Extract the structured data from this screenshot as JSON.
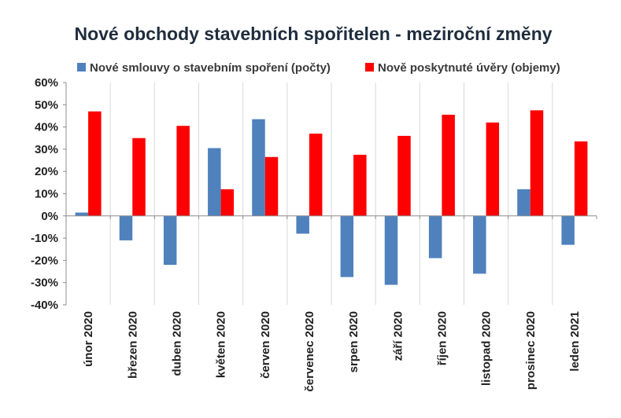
{
  "chart_data": {
    "type": "bar",
    "title": "Nové obchody stavebních spořitelen - meziroční změny",
    "xlabel": "",
    "ylabel": "",
    "categories": [
      "únor 2020",
      "březen 2020",
      "duben 2020",
      "květen 2020",
      "červen 2020",
      "červenec 2020",
      "srpen 2020",
      "září 2020",
      "říjen 2020",
      "listopad 2020",
      "prosinec 2020",
      "leden 2021"
    ],
    "series": [
      {
        "name": "Nové smlouvy o stavebním spoření (počty)",
        "color": "#4f81bd",
        "values": [
          1.5,
          -11,
          -22,
          30.5,
          43.5,
          -8,
          -27.5,
          -31,
          -19,
          -26,
          12,
          -13
        ]
      },
      {
        "name": "Nově poskytnuté úvěry (objemy)",
        "color": "#ff0000",
        "values": [
          47,
          35,
          40.5,
          12,
          26.5,
          37,
          27.5,
          36,
          45.5,
          42,
          47.5,
          33.5
        ]
      }
    ],
    "ylim": [
      -40,
      60
    ],
    "yticks": [
      -40,
      -30,
      -20,
      -10,
      0,
      10,
      20,
      30,
      40,
      50,
      60
    ],
    "ytick_labels": [
      "-40%",
      "-30%",
      "-20%",
      "-10%",
      "0%",
      "10%",
      "20%",
      "30%",
      "40%",
      "50%",
      "60%"
    ],
    "grid": "vertical category separators",
    "legend_position": "top"
  }
}
